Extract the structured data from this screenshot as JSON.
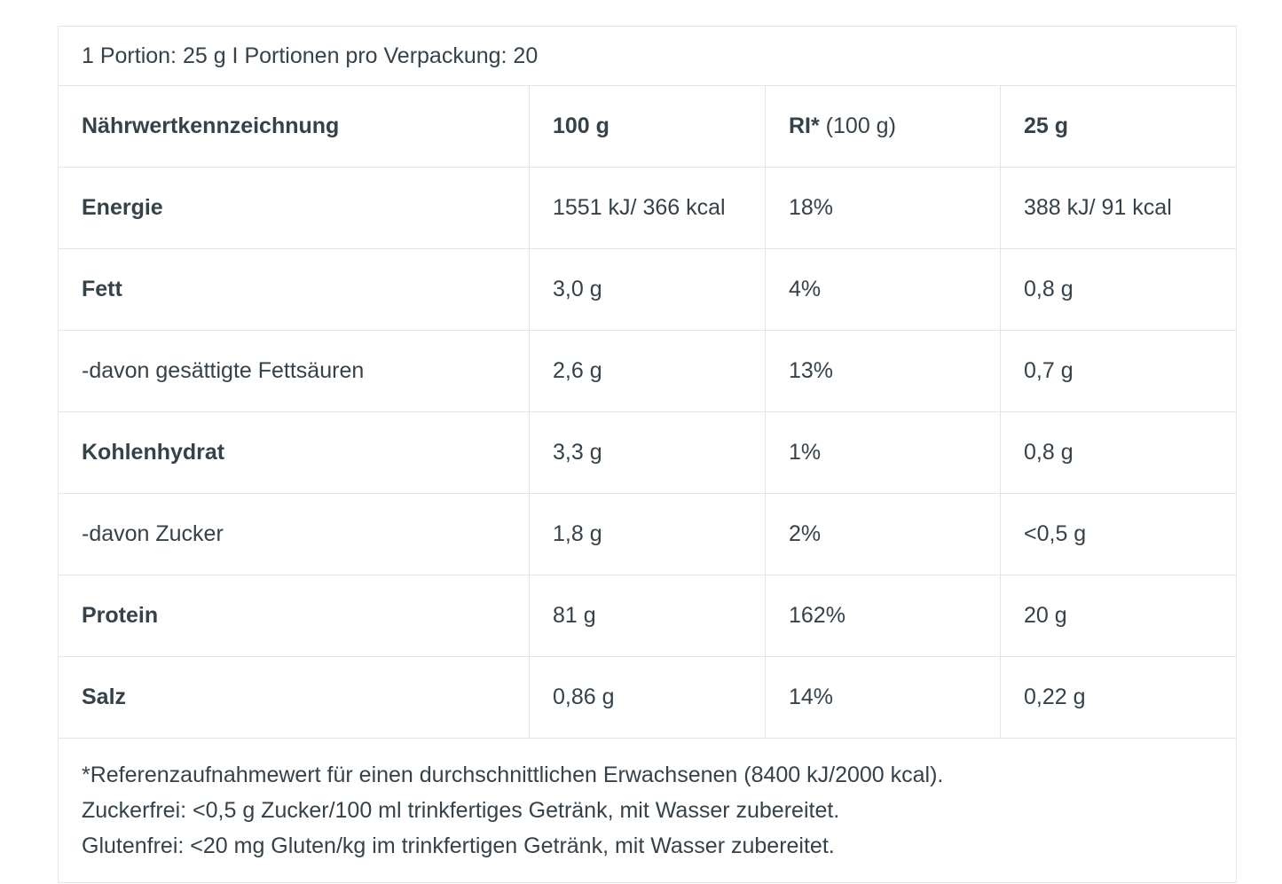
{
  "serving_info": "1 Portion: 25 g I Portionen pro Verpackung: 20",
  "header": {
    "label": "Nährwertkennzeichnung",
    "col_100g": "100 g",
    "col_ri_bold": "RI*",
    "col_ri_rest": " (100 g)",
    "col_25g": "25 g"
  },
  "rows": [
    {
      "name": "Energie",
      "bold": true,
      "per_100g": "1551 kJ/ 366 kcal",
      "ri": "18%",
      "per_25g": "388 kJ/ 91 kcal"
    },
    {
      "name": "Fett",
      "bold": true,
      "per_100g": "3,0 g",
      "ri": "4%",
      "per_25g": "0,8 g"
    },
    {
      "name": "-davon gesättigte Fettsäuren",
      "bold": false,
      "per_100g": "2,6 g",
      "ri": "13%",
      "per_25g": "0,7 g"
    },
    {
      "name": "Kohlenhydrat",
      "bold": true,
      "per_100g": "3,3 g",
      "ri": "1%",
      "per_25g": "0,8 g"
    },
    {
      "name": "-davon Zucker",
      "bold": false,
      "per_100g": "1,8 g",
      "ri": "2%",
      "per_25g": "<0,5 g"
    },
    {
      "name": "Protein",
      "bold": true,
      "per_100g": "81 g",
      "ri": "162%",
      "per_25g": "20 g"
    },
    {
      "name": "Salz",
      "bold": true,
      "per_100g": "0,86 g",
      "ri": "14%",
      "per_25g": "0,22 g"
    }
  ],
  "footnotes": [
    "*Referenzaufnahmewert für einen durchschnittlichen Erwachsenen (8400 kJ/2000 kcal).",
    "Zuckerfrei: <0,5 g Zucker/100 ml trinkfertiges Getränk, mit Wasser zubereitet.",
    "Glutenfrei: <20 mg Gluten/kg im trinkfertigen Getränk, mit Wasser zubereitet."
  ],
  "colors": {
    "text": "#35424a",
    "border": "#e3e5e7"
  }
}
